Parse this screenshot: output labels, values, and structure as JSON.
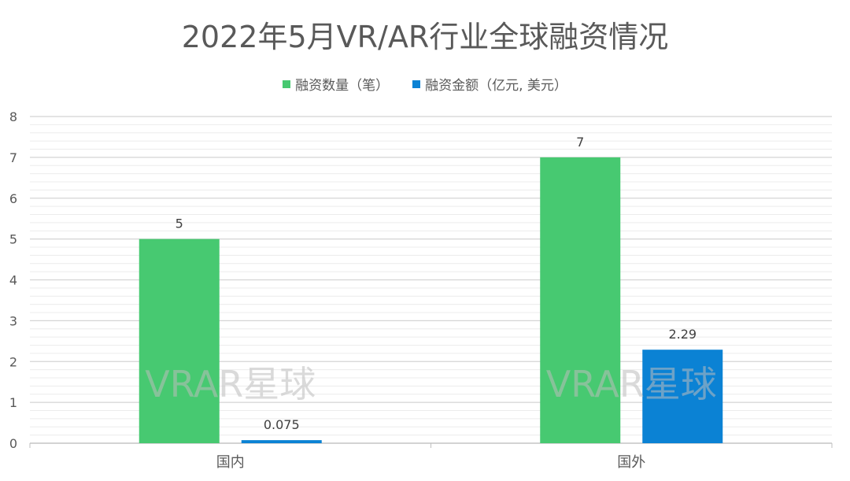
{
  "chart_data": {
    "type": "bar",
    "title": "2022年5月VR/AR行业全球融资情况",
    "categories": [
      "国内",
      "国外"
    ],
    "series": [
      {
        "name": "融资数量（笔）",
        "values": [
          5,
          7
        ],
        "labels": [
          "5",
          "7"
        ],
        "color": "#47c971"
      },
      {
        "name": "融资金额（亿元, 美元）",
        "values": [
          0.075,
          2.29
        ],
        "labels": [
          "0.075",
          "2.29"
        ],
        "color": "#0b82d4"
      }
    ],
    "ylim": [
      0,
      8
    ],
    "yticks": [
      "0",
      "1",
      "2",
      "3",
      "4",
      "5",
      "6",
      "7",
      "8"
    ],
    "grid": true,
    "legend": "top-center",
    "watermark": "VRAR星球"
  }
}
